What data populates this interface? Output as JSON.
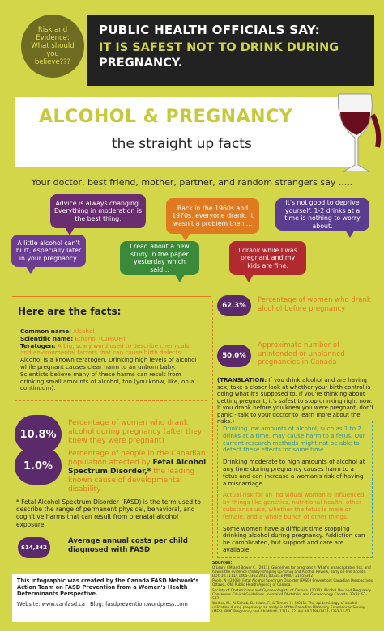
{
  "badge": "Risk and Evidence: What should you believe???",
  "header": {
    "title": "PUBLIC HEALTH OFFICIALS SAY:",
    "message_highlight": "IT IS SAFEST NOT TO DRINK DURING",
    "message_end": "PREGNANCY."
  },
  "banner": {
    "title": "ALCOHOL & PREGNANCY",
    "subtitle": "the straight up facts"
  },
  "intro": "Your doctor, best friend, mother, partner, and random strangers say .....",
  "bubbles": [
    "Advice is always changing. Everything in moderation is the best thing.",
    "Back in the 1960s and 1970s, everyone drank. It wasn't a problem then....",
    "It's not good to deprive yourself. 1-2 drinks at a time is nothing to worry about.",
    "A little alcohol can't hurt, especially later in your pregnancy.",
    "I read about a new study in the paper yesterday which said...",
    "I drank while I was pregnant and my kids are fine."
  ],
  "facts_heading": "Here are the facts:",
  "definitions": {
    "common_label": "Common name:",
    "common_value": "Alcohol",
    "scientific_label": "Scientific name:",
    "scientific_value": "Ethanol (C₂H₅OH)",
    "teratogen_label": "Teratogen:",
    "teratogen_value": "A big, scary word used to describe chemicals and environmental factors that can cause birth defects.",
    "paragraph": "Alcohol is a known teratogen. Drinking high levels of alcohol while pregnant causes clear harm to an unborn baby. Scientists believe many of these harms can result from drinking small amounts of alcohol, too (you know, like, on a continuum)."
  },
  "stats_left": [
    {
      "value": "10.8%",
      "text": "Percentage of women who drank alcohol during pregnancy (after they knew they were pregnant)"
    },
    {
      "value": "1.0%",
      "text": "Percentage of people in the Canadian population affected by",
      "emphasis": "Fetal Alcohol Spectrum Disorder,*",
      "text_end": "the leading known cause of developmental disability"
    },
    {
      "value": "$14,342",
      "text": "Average annual costs per child diagnosed with FASD"
    }
  ],
  "fasd_note": "* Fetal Alcohol Spectrum Disorder (FASD) is the term used to describe the range of permanent physical, behavioral, and cognitive harms that can result from prenatal alcohol exposure.",
  "stats_right": [
    {
      "value": "62.3%",
      "text": "Percentage of women who drank alcohol before pregnancy"
    },
    {
      "value": "50.0%",
      "text": "Approximate number of unintended or unplanned pregnancies in Canada"
    }
  ],
  "translation": {
    "label": "(TRANSLATION:",
    "text": "If you drink alcohol and are having sex, take a closer look at whether your birth control is doing what it's supposed to. If you're thinking about getting pregnant, it's safest to stop drinking right now. If you drank before you knew you were pregnant, don't panic - talk to your doctor to learn more about the risks.)"
  },
  "risk_box": [
    "Drinking low amounts of alcohol, such as 1 to 2 drinks at a time, may cause harm to a fetus. Our current research methods might not be able to detect these effects for some time.",
    "Drinking moderate to high amounts of alcohol at any time during pregnancy causes harm to a fetus and can increase a woman's risk of having a miscarriage.",
    "Actual risk for an individual woman is influenced by things like genetics, nutritional health, other substance use, whether the fetus is male or female, and a whole bunch of other things.",
    "Some women have a difficult time stopping drinking alcohol during pregnancy. Addiction can be complicated, but support and care are available."
  ],
  "sources": {
    "heading": "Sources:",
    "items": [
      "O'Leary CM and Bower C. (2011). Guidelines for pregnancy: What's an acceptable risk, and how is the evidence (finally) shaping up? Drug and Alcohol Review, early on-line access. DOI: 10.1111/j.1465-3362.2011.00331.x PMID: 21955332",
      "Poole, N. (2008). Fetal Alcohol Spectrum Disorder (FASD) Prevention: Canadian Perspectives. Ottawa, ON: Public Health Agency of Canada.",
      "Society of Obstetricians and Gynaecologists of Canada. (2010). Alcohol Use and Pregnancy Consensus Clinical Guidelines. Journal of Obstetrics and Gynaecology Canada, 32(8): S1-S32.",
      "Walker, M., Al-Sahab, B., Islam, F., & Tamim, H. (2011). The epidemiology of alcohol utilization during pregnancy: an analysis of the Canadian Maternity Experiences Survey (MES). BMC Pregnancy and Childbirth, 11(1), 52. doi:10.1186/1471-2393-11-52"
    ]
  },
  "footer": {
    "credit": "This infographic was created by the Canada FASD Network's Action Team on FASD Prevention from a Women's Health Determinants Perspective.",
    "website": "Website: www.canfasd.ca",
    "blog": "Blog: fasdprevention.wordpress.com"
  }
}
